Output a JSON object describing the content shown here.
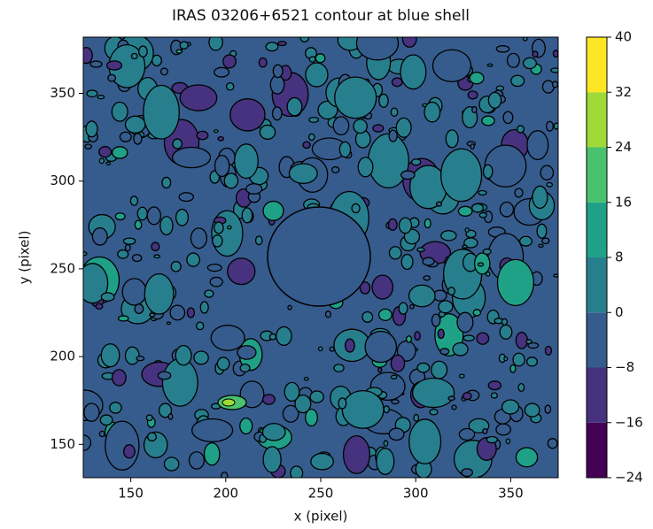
{
  "chart_data": {
    "type": "contour",
    "title": "IRAS 03206+6521 contour at blue shell",
    "xlabel": "x (pixel)",
    "ylabel": "y (pixel)",
    "xlim": [
      125,
      375
    ],
    "ylim": [
      131,
      382
    ],
    "xticks": [
      150,
      200,
      250,
      300,
      350
    ],
    "yticks": [
      150,
      200,
      250,
      300,
      350
    ],
    "colorbar": {
      "levels": [
        {
          "value": -24,
          "label": "−24"
        },
        {
          "value": -16,
          "label": "−16"
        },
        {
          "value": -8,
          "label": "−8"
        },
        0,
        8,
        16,
        24,
        32,
        40
      ],
      "colors": [
        "#440154",
        "#46327e",
        "#365c8d",
        "#277f8e",
        "#1fa187",
        "#4ac16d",
        "#a0da39",
        "#fde725"
      ]
    }
  }
}
